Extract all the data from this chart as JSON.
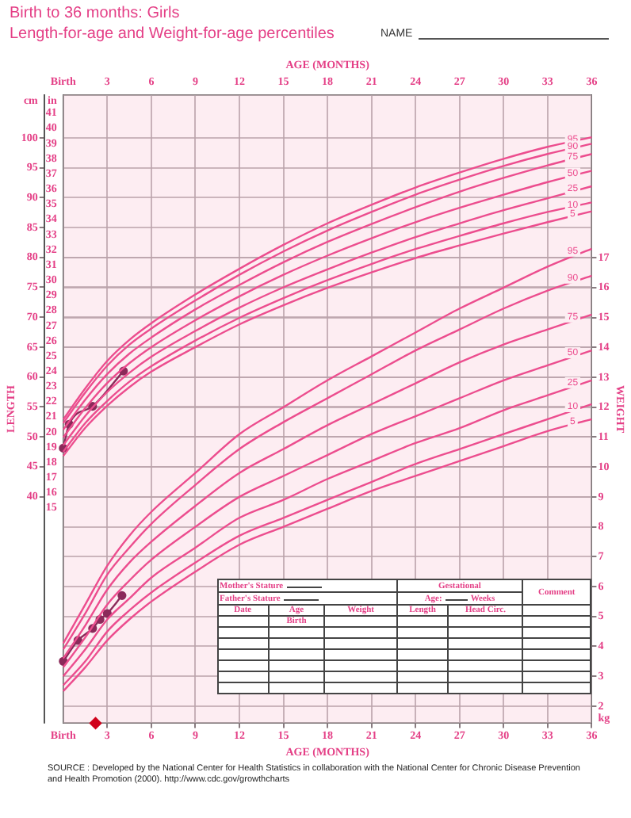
{
  "chart_data": {
    "type": "line",
    "title": "Birth to 36 months: Girls",
    "subtitle": "Length-for-age and Weight-for-age percentiles",
    "xlabel": "AGE (MONTHS)",
    "x2label": "AGE (MONTHS)",
    "ylabel": "LENGTH",
    "y2label": "WEIGHT",
    "x": [
      0,
      1.5,
      3,
      4.5,
      6,
      9,
      12,
      15,
      18,
      21,
      24,
      27,
      30,
      33,
      36
    ],
    "xlim": [
      0,
      36
    ],
    "xticks": [
      {
        "value": 0,
        "label": "Birth"
      },
      3,
      6,
      9,
      12,
      15,
      18,
      21,
      24,
      27,
      30,
      33,
      36
    ],
    "x2lim": [
      0,
      36
    ],
    "x2ticks": [
      {
        "value": 0,
        "label": "Birth"
      },
      3,
      6,
      9,
      12,
      15,
      18,
      21,
      24,
      27,
      30,
      33,
      36
    ],
    "ylim": [
      2.1,
      107.2
    ],
    "yticks": [
      40,
      45,
      50,
      55,
      60,
      65,
      70,
      75,
      80,
      85,
      90,
      95,
      100,
      {
        "value": 106.2,
        "label": "cm"
      }
    ],
    "y3lim": [
      0.83,
      42.2
    ],
    "y3ticks": [
      15,
      16,
      17,
      18,
      19,
      20,
      21,
      22,
      23,
      24,
      25,
      26,
      27,
      28,
      29,
      30,
      31,
      32,
      33,
      34,
      35,
      36,
      37,
      38,
      39,
      40,
      41,
      {
        "value": 41.8,
        "label": "in"
      }
    ],
    "y2lim": [
      1.43,
      22.45
    ],
    "y2ticks": [
      {
        "value": 1.6,
        "label": "kg"
      },
      2,
      3,
      4,
      5,
      6,
      7,
      8,
      9,
      10,
      11,
      12,
      13,
      14,
      15,
      16,
      17
    ],
    "grid": true,
    "legend": false,
    "marker": "none",
    "series": [
      {
        "name": "95",
        "color": "#ec4d8e",
        "axis": "y",
        "values": [
          52.9,
          58.1,
          62.7,
          66.2,
          69.0,
          73.8,
          78.1,
          82.1,
          85.7,
          88.8,
          91.7,
          94.2,
          96.5,
          98.5,
          100.1
        ]
      },
      {
        "name": "90",
        "color": "#ec4d8e",
        "axis": "y",
        "values": [
          52.3,
          57.4,
          61.9,
          65.4,
          68.1,
          72.8,
          77.1,
          81.0,
          84.5,
          87.6,
          90.5,
          93.0,
          95.3,
          97.3,
          99.0
        ]
      },
      {
        "name": "75",
        "color": "#ec4d8e",
        "axis": "y",
        "values": [
          51.2,
          56.2,
          60.5,
          63.9,
          66.6,
          71.3,
          75.4,
          79.2,
          82.6,
          85.6,
          88.4,
          91.0,
          93.3,
          95.4,
          97.3
        ]
      },
      {
        "name": "50",
        "color": "#ec4d8e",
        "axis": "y",
        "values": [
          49.9,
          54.8,
          59.0,
          62.3,
          65.0,
          69.5,
          73.5,
          77.1,
          80.3,
          83.2,
          85.9,
          88.3,
          90.5,
          92.6,
          94.5
        ]
      },
      {
        "name": "25",
        "color": "#ec4d8e",
        "axis": "y",
        "values": [
          48.6,
          53.5,
          57.5,
          60.7,
          63.4,
          67.7,
          71.6,
          75.0,
          78.0,
          80.8,
          83.4,
          85.7,
          87.9,
          89.9,
          91.9
        ]
      },
      {
        "name": "10",
        "color": "#ec4d8e",
        "axis": "y",
        "values": [
          47.5,
          52.3,
          56.0,
          59.2,
          61.8,
          66.1,
          69.9,
          73.2,
          76.2,
          78.9,
          81.4,
          83.6,
          85.7,
          87.6,
          89.2
        ]
      },
      {
        "name": "5",
        "color": "#ec4d8e",
        "axis": "y",
        "values": [
          46.8,
          51.5,
          55.2,
          58.3,
          60.9,
          65.0,
          68.8,
          72.0,
          74.9,
          77.5,
          79.9,
          82.0,
          84.0,
          85.9,
          87.7
        ]
      },
      {
        "name": "95",
        "color": "#ec4d8e",
        "axis": "y2",
        "values": [
          4.1,
          5.4,
          6.7,
          7.7,
          8.5,
          9.8,
          11.1,
          12.0,
          12.9,
          13.7,
          14.5,
          15.3,
          16.0,
          16.7,
          17.3
        ]
      },
      {
        "name": "90",
        "color": "#ec4d8e",
        "axis": "y2",
        "values": [
          3.9,
          5.1,
          6.4,
          7.3,
          8.1,
          9.4,
          10.6,
          11.5,
          12.3,
          13.1,
          13.9,
          14.6,
          15.3,
          15.9,
          16.4
        ]
      },
      {
        "name": "75",
        "color": "#ec4d8e",
        "axis": "y2",
        "values": [
          3.6,
          4.7,
          5.9,
          6.8,
          7.5,
          8.7,
          9.8,
          10.6,
          11.4,
          12.1,
          12.8,
          13.5,
          14.1,
          14.6,
          15.1
        ]
      },
      {
        "name": "50",
        "color": "#ec4d8e",
        "axis": "y2",
        "values": [
          3.3,
          4.3,
          5.4,
          6.2,
          6.9,
          8.0,
          9.0,
          9.7,
          10.4,
          11.1,
          11.7,
          12.3,
          12.9,
          13.4,
          13.9
        ]
      },
      {
        "name": "25",
        "color": "#ec4d8e",
        "axis": "y2",
        "values": [
          3.0,
          3.9,
          4.9,
          5.6,
          6.3,
          7.3,
          8.3,
          8.9,
          9.6,
          10.2,
          10.8,
          11.3,
          11.9,
          12.4,
          12.9
        ]
      },
      {
        "name": "10",
        "color": "#ec4d8e",
        "axis": "y2",
        "values": [
          2.7,
          3.5,
          4.5,
          5.2,
          5.8,
          6.8,
          7.7,
          8.3,
          8.9,
          9.5,
          10.1,
          10.6,
          11.1,
          11.6,
          12.1
        ]
      },
      {
        "name": "5",
        "color": "#ec4d8e",
        "axis": "y2",
        "values": [
          2.5,
          3.3,
          4.2,
          4.9,
          5.5,
          6.5,
          7.4,
          8.0,
          8.6,
          9.2,
          9.7,
          10.2,
          10.7,
          11.2,
          11.6
        ]
      },
      {
        "color": "#8b2a5a",
        "axis": "y",
        "marker": "circle",
        "x": [
          0,
          0.4,
          2.0,
          4.1
        ],
        "values": [
          48.1,
          52.1,
          55.1,
          61.0
        ]
      },
      {
        "color": "#8b2a5a",
        "axis": "y2",
        "marker": "circle",
        "x": [
          0,
          1.0,
          2.0,
          2.5,
          3.0,
          4.0
        ],
        "values": [
          3.5,
          4.2,
          4.6,
          4.9,
          5.1,
          5.7
        ]
      },
      {
        "type": "scatter",
        "color": "#d0021b",
        "axis": "y2",
        "marker": "diamond",
        "x": [
          2.2
        ],
        "values": [
          1.43
        ]
      }
    ],
    "annotations": [
      "SOURCE : Developed by the National Center for Health Statistics in collaboration with the National Center for Chronic Disease Prevention and Health Promotion (2000). http://www.cdc.gov/growthcharts",
      "NAME",
      "Mother's Stature",
      "Father's Stature",
      "Gestational",
      "Age:",
      "Weeks",
      "Comment",
      "Date",
      "Age",
      "Weight",
      "Length",
      "Head Circ.",
      "Birth"
    ]
  }
}
